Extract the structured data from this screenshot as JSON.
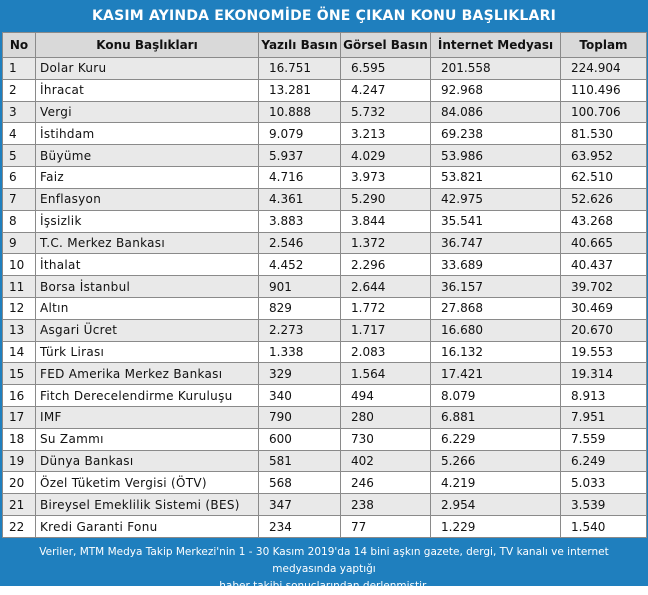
{
  "title": "KASIM AYINDA EKONOMİDE ÖNE ÇIKAN KONU BAŞLIKLARI",
  "columns": [
    "No",
    "Konu Başlıkları",
    "Yazılı Basın",
    "Görsel Basın",
    "İnternet Medyası",
    "Toplam"
  ],
  "rows": [
    {
      "no": "1",
      "konu": "Dolar Kuru",
      "yazili": "16.751",
      "gorsel": "6.595",
      "internet": "201.558",
      "toplam": "224.904"
    },
    {
      "no": "2",
      "konu": "İhracat",
      "yazili": "13.281",
      "gorsel": "4.247",
      "internet": "92.968",
      "toplam": "110.496"
    },
    {
      "no": "3",
      "konu": "Vergi",
      "yazili": "10.888",
      "gorsel": "5.732",
      "internet": "84.086",
      "toplam": "100.706"
    },
    {
      "no": "4",
      "konu": "İstihdam",
      "yazili": "9.079",
      "gorsel": "3.213",
      "internet": "69.238",
      "toplam": "81.530"
    },
    {
      "no": "5",
      "konu": "Büyüme",
      "yazili": "5.937",
      "gorsel": "4.029",
      "internet": "53.986",
      "toplam": "63.952"
    },
    {
      "no": "6",
      "konu": "Faiz",
      "yazili": "4.716",
      "gorsel": "3.973",
      "internet": "53.821",
      "toplam": "62.510"
    },
    {
      "no": "7",
      "konu": "Enflasyon",
      "yazili": "4.361",
      "gorsel": "5.290",
      "internet": "42.975",
      "toplam": "52.626"
    },
    {
      "no": "8",
      "konu": "İşsizlik",
      "yazili": "3.883",
      "gorsel": "3.844",
      "internet": "35.541",
      "toplam": "43.268"
    },
    {
      "no": "9",
      "konu": "T.C. Merkez Bankası",
      "yazili": "2.546",
      "gorsel": "1.372",
      "internet": "36.747",
      "toplam": "40.665"
    },
    {
      "no": "10",
      "konu": "İthalat",
      "yazili": "4.452",
      "gorsel": "2.296",
      "internet": "33.689",
      "toplam": "40.437"
    },
    {
      "no": "11",
      "konu": "Borsa İstanbul",
      "yazili": "901",
      "gorsel": "2.644",
      "internet": "36.157",
      "toplam": "39.702"
    },
    {
      "no": "12",
      "konu": "Altın",
      "yazili": "829",
      "gorsel": "1.772",
      "internet": "27.868",
      "toplam": "30.469"
    },
    {
      "no": "13",
      "konu": "Asgari Ücret",
      "yazili": "2.273",
      "gorsel": "1.717",
      "internet": "16.680",
      "toplam": "20.670"
    },
    {
      "no": "14",
      "konu": "Türk Lirası",
      "yazili": "1.338",
      "gorsel": "2.083",
      "internet": "16.132",
      "toplam": "19.553"
    },
    {
      "no": "15",
      "konu": "FED Amerika Merkez Bankası",
      "yazili": "329",
      "gorsel": "1.564",
      "internet": "17.421",
      "toplam": "19.314"
    },
    {
      "no": "16",
      "konu": "Fitch Derecelendirme Kuruluşu",
      "yazili": "340",
      "gorsel": "494",
      "internet": "8.079",
      "toplam": "8.913"
    },
    {
      "no": "17",
      "konu": "IMF",
      "yazili": "790",
      "gorsel": "280",
      "internet": "6.881",
      "toplam": "7.951"
    },
    {
      "no": "18",
      "konu": "Su Zammı",
      "yazili": "600",
      "gorsel": "730",
      "internet": "6.229",
      "toplam": "7.559"
    },
    {
      "no": "19",
      "konu": "Dünya Bankası",
      "yazili": "581",
      "gorsel": "402",
      "internet": "5.266",
      "toplam": "6.249"
    },
    {
      "no": "20",
      "konu": "Özel Tüketim Vergisi (ÖTV)",
      "yazili": "568",
      "gorsel": "246",
      "internet": "4.219",
      "toplam": "5.033"
    },
    {
      "no": "21",
      "konu": "Bireysel Emeklilik Sistemi (BES)",
      "yazili": "347",
      "gorsel": "238",
      "internet": "2.954",
      "toplam": "3.539"
    },
    {
      "no": "22",
      "konu": "Kredi Garanti Fonu",
      "yazili": "234",
      "gorsel": "77",
      "internet": "1.229",
      "toplam": "1.540"
    }
  ],
  "footer": {
    "line1": "Veriler, MTM Medya Takip Merkezi'nin 1 - 30 Kasım 2019'da 14 bini aşkın gazete, dergi, TV kanalı ve internet medyasında yaptığı",
    "line2": "haber takibi sonuçlarından derlenmiştir."
  },
  "colors": {
    "frame": "#1f7fbe",
    "header_bg": "#d9d9d9",
    "row_alt": "#e9e9e9"
  }
}
